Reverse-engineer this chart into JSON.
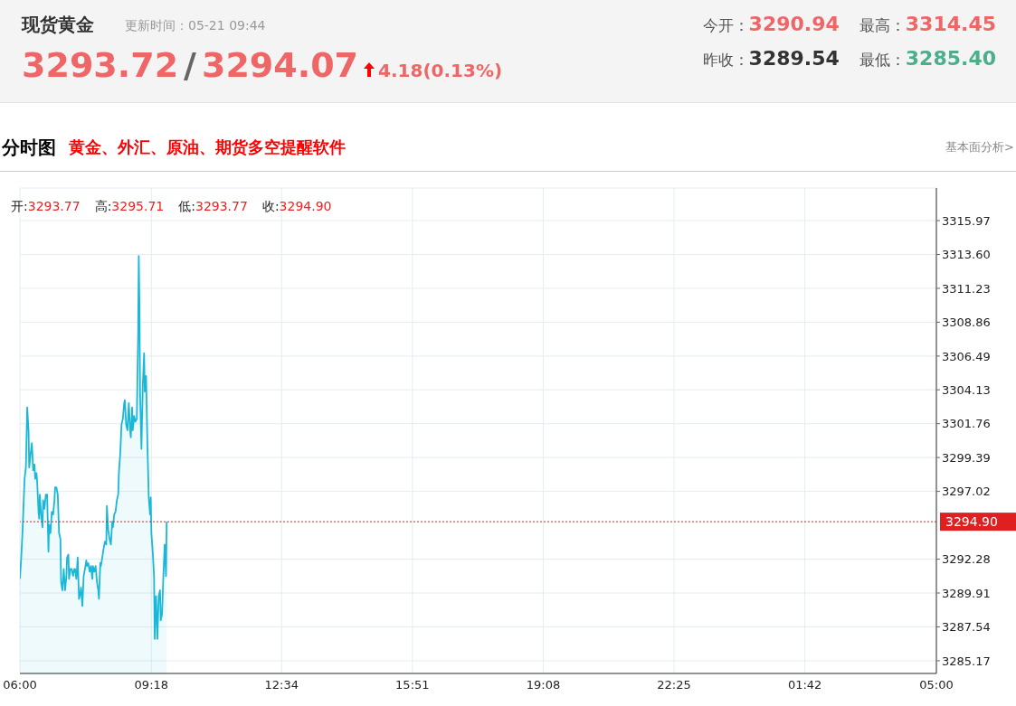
{
  "chart_data": {
    "type": "area",
    "title": "现货黄金",
    "subtitle": "更新时间：05-21 09:44",
    "x": [
      "--05-21T06:00",
      "--05-21T06:02",
      "--05-21T06:04",
      "--05-21T06:07",
      "--05-21T06:09",
      "--05-21T06:11",
      "--05-21T06:13",
      "--05-21T06:14",
      "--05-21T06:16",
      "--05-21T06:18",
      "--05-21T06:20",
      "--05-21T06:22",
      "--05-21T06:23",
      "--05-21T06:25",
      "--05-21T06:26",
      "--05-21T06:28",
      "--05-21T06:29",
      "--05-21T06:30",
      "--05-21T06:32",
      "--05-21T06:34",
      "--05-21T06:35",
      "--05-21T06:37",
      "--05-21T06:39",
      "--05-21T06:41",
      "--05-21T06:43",
      "--05-21T06:44",
      "--05-21T06:46",
      "--05-21T06:48",
      "--05-21T06:50",
      "--05-21T06:52",
      "--05-21T06:53",
      "--05-21T06:55",
      "--05-21T06:57",
      "--05-21T06:59",
      "--05-21T07:01",
      "--05-21T07:02",
      "--05-21T07:04",
      "--05-21T07:06",
      "--05-21T07:08",
      "--05-21T07:10",
      "--05-21T07:11",
      "--05-21T07:13",
      "--05-21T07:14",
      "--05-21T07:16",
      "--05-21T07:18",
      "--05-21T07:20",
      "--05-21T07:22",
      "--05-21T07:23",
      "--05-21T07:25",
      "--05-21T07:27",
      "--05-21T07:29",
      "--05-21T07:31",
      "--05-21T07:32",
      "--05-21T07:34",
      "--05-21T07:36",
      "--05-21T07:38",
      "--05-21T07:40",
      "--05-21T07:41",
      "--05-21T07:43",
      "--05-21T07:45",
      "--05-21T07:47",
      "--05-21T07:49",
      "--05-21T07:50",
      "--05-21T07:52",
      "--05-21T07:54",
      "--05-21T07:56",
      "--05-21T07:58",
      "--05-21T07:59",
      "--05-21T08:01",
      "--05-21T08:02",
      "--05-21T08:04",
      "--05-21T08:06",
      "--05-21T08:08",
      "--05-21T08:10",
      "--05-21T08:11",
      "--05-21T08:13",
      "--05-21T08:15",
      "--05-21T08:17",
      "--05-21T08:19",
      "--05-21T08:20",
      "--05-21T08:22",
      "--05-21T08:24",
      "--05-21T08:26",
      "--05-21T08:28",
      "--05-21T08:29",
      "--05-21T08:31",
      "--05-21T08:33",
      "--05-21T08:35",
      "--05-21T08:37",
      "--05-21T08:38",
      "--05-21T08:40",
      "--05-21T08:42",
      "--05-21T08:44",
      "--05-21T08:46",
      "--05-21T08:47",
      "--05-21T08:49",
      "--05-21T08:50",
      "--05-21T08:52",
      "--05-21T08:54",
      "--05-21T08:56",
      "--05-21T08:58",
      "--05-21T08:59",
      "--05-21T09:00",
      "--05-21T09:01",
      "--05-21T09:03",
      "--05-21T09:05",
      "--05-21T09:07",
      "--05-21T09:08",
      "--05-21T09:10",
      "--05-21T09:12",
      "--05-21T09:14",
      "--05-21T09:16",
      "--05-21T09:17",
      "--05-21T09:18",
      "--05-21T09:20",
      "--05-21T09:22",
      "--05-21T09:23",
      "--05-21T09:25",
      "--05-21T09:27",
      "--05-21T09:29",
      "--05-21T09:31",
      "--05-21T09:32",
      "--05-21T09:34",
      "--05-21T09:36",
      "--05-21T09:38",
      "--05-21T09:40",
      "--05-21T09:41"
    ],
    "series": [
      {
        "color": "#1ab8d8",
        "values": [
          3290.9,
          3292.4,
          3294.3,
          3297.9,
          3298.7,
          3302.9,
          3301.3,
          3298.7,
          3299.6,
          3300.4,
          3298.5,
          3298.9,
          3297.9,
          3298.3,
          3297.7,
          3295.6,
          3295.1,
          3296.8,
          3295.4,
          3294.5,
          3296.4,
          3295.8,
          3296.8,
          3296.8,
          3292.8,
          3294.7,
          3294.1,
          3295.6,
          3295.4,
          3296.4,
          3297.3,
          3297.3,
          3296.8,
          3294.1,
          3293.7,
          3290.7,
          3290.1,
          3291.6,
          3290.1,
          3291.1,
          3292.4,
          3292.6,
          3290.9,
          3291.6,
          3291.6,
          3291.1,
          3291.6,
          3291.6,
          3290.9,
          3292.4,
          3289.5,
          3289.9,
          3290.3,
          3289.0,
          3291.1,
          3291.6,
          3292.2,
          3291.8,
          3292.0,
          3291.4,
          3291.8,
          3290.9,
          3291.8,
          3291.4,
          3291.8,
          3290.7,
          3290.1,
          3289.5,
          3292.0,
          3291.8,
          3292.4,
          3293.0,
          3293.5,
          3293.3,
          3296.0,
          3294.3,
          3293.7,
          3293.3,
          3294.9,
          3294.5,
          3295.4,
          3295.6,
          3296.4,
          3296.8,
          3298.3,
          3299.6,
          3301.7,
          3302.1,
          3303.2,
          3303.4,
          3301.7,
          3301.3,
          3303.2,
          3301.3,
          3300.8,
          3302.9,
          3301.3,
          3302.3,
          3301.9,
          3302.1,
          3308.0,
          3313.5,
          3310.1,
          3303.8,
          3300.0,
          3304.4,
          3306.7,
          3304.0,
          3305.1,
          3300.4,
          3296.6,
          3295.4,
          3296.6,
          3294.1,
          3292.8,
          3291.1,
          3286.7,
          3289.7,
          3286.7,
          3289.7,
          3290.1,
          3288.0,
          3288.4,
          3291.1,
          3293.3,
          3291.1,
          3294.9
        ]
      }
    ],
    "xlim": [
      "--05-21T06:00",
      "--05-22T05:00"
    ],
    "xticks": [
      {
        "value": "--05-21T06:00",
        "label": "06:00"
      },
      {
        "value": "--05-21T09:18",
        "label": "09:18"
      },
      {
        "value": "--05-21T12:34",
        "label": "12:34"
      },
      {
        "value": "--05-21T15:51",
        "label": "15:51"
      },
      {
        "value": "--05-21T19:08",
        "label": "19:08"
      },
      {
        "value": "--05-21T22:25",
        "label": "22:25"
      },
      {
        "value": "--05-22T01:42",
        "label": "01:42"
      },
      {
        "value": "--05-22T05:00",
        "label": "05:00"
      }
    ],
    "ylim": [
      3284.28,
      3318.25
    ],
    "yticks": [
      3285.17,
      3287.54,
      3289.91,
      3292.28,
      3297.02,
      3299.39,
      3301.76,
      3304.13,
      3306.49,
      3308.86,
      3311.23,
      {
        "value": 3313.6,
        "label": "3313.60"
      },
      3315.97
    ],
    "grid": true,
    "ref_lines": [
      {
        "axis": "y",
        "value": 3294.9,
        "label": "3294.90",
        "color": "#e02020",
        "line_style": "dotted"
      }
    ],
    "annotations": [
      "3293.72",
      "/",
      "3294.07",
      "4.18(0.13%)",
      "今开：",
      "3290.94",
      "最高：",
      "3314.45",
      "昨收：",
      "3289.54",
      "最低：",
      "3285.40",
      "分时图",
      "黄金、外汇、原油、期货多空提醒软件",
      "基本面分析>",
      "开:",
      "3293.77",
      "高:",
      "3295.71",
      "低:",
      "3293.77",
      "收:",
      "3294.90"
    ]
  }
}
